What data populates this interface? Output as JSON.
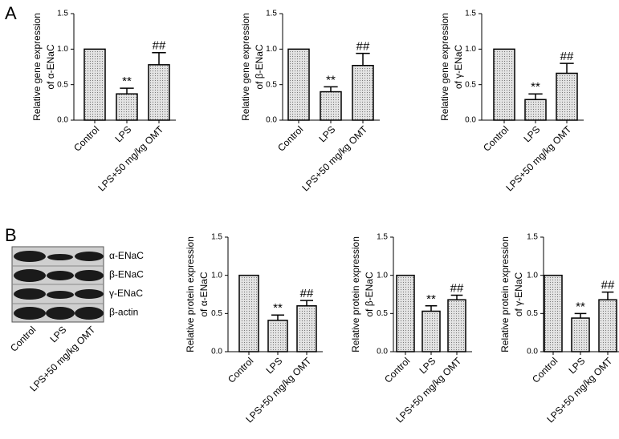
{
  "panels": [
    "A",
    "B"
  ],
  "blot": {
    "rows": [
      "α-ENaC",
      "β-ENaC",
      "γ-ENaC",
      "β-actin"
    ],
    "lanes": [
      "Control",
      "LPS",
      "LPS+50 mg/kg OMT"
    ]
  },
  "chart_data": [
    {
      "type": "bar",
      "ylabel": [
        "Relative gene expression",
        "of α-ENaC"
      ],
      "categories": [
        "Control",
        "LPS",
        "LPS+50 mg/kg OMT"
      ],
      "values": [
        1.0,
        0.37,
        0.78
      ],
      "errors": [
        null,
        0.08,
        0.17
      ],
      "annotations": [
        null,
        "**",
        "##"
      ],
      "color": "#e4e4e4",
      "ylim": [
        0,
        1.5
      ],
      "yticks": [
        {
          "value": 0,
          "label": "0.0"
        },
        0.5,
        {
          "value": 1,
          "label": "1.0"
        },
        1.5
      ]
    },
    {
      "type": "bar",
      "ylabel": [
        "Relative gene expression",
        "of β-ENaC"
      ],
      "categories": [
        "Control",
        "LPS",
        "LPS+50 mg/kg OMT"
      ],
      "values": [
        1.0,
        0.4,
        0.77
      ],
      "errors": [
        null,
        0.07,
        0.17
      ],
      "annotations": [
        null,
        "**",
        "##"
      ],
      "color": "#e4e4e4",
      "ylim": [
        0,
        1.5
      ],
      "yticks": [
        {
          "value": 0,
          "label": "0.0"
        },
        0.5,
        {
          "value": 1,
          "label": "1.0"
        },
        1.5
      ]
    },
    {
      "type": "bar",
      "ylabel": [
        "Relative gene expression",
        "of γ-ENaC"
      ],
      "categories": [
        "Control",
        "LPS",
        "LPS+50 mg/kg OMT"
      ],
      "values": [
        1.0,
        0.29,
        0.66
      ],
      "errors": [
        null,
        0.08,
        0.14
      ],
      "annotations": [
        null,
        "**",
        "##"
      ],
      "color": "#e4e4e4",
      "ylim": [
        0,
        1.5
      ],
      "yticks": [
        {
          "value": 0,
          "label": "0.0"
        },
        0.5,
        {
          "value": 1,
          "label": "1.0"
        },
        1.5
      ]
    },
    {
      "type": "bar",
      "ylabel": [
        "Relative protein expression",
        "of α-ENaC"
      ],
      "categories": [
        "Control",
        "LPS",
        "LPS+50 mg/kg OMT"
      ],
      "values": [
        1.0,
        0.41,
        0.6
      ],
      "errors": [
        null,
        0.07,
        0.07
      ],
      "annotations": [
        null,
        "**",
        "##"
      ],
      "color": "#e4e4e4",
      "ylim": [
        0,
        1.5
      ],
      "yticks": [
        {
          "value": 0,
          "label": "0.0"
        },
        0.5,
        {
          "value": 1,
          "label": "1.0"
        },
        1.5
      ]
    },
    {
      "type": "bar",
      "ylabel": [
        "Relative protein expression",
        "of β-ENaC"
      ],
      "categories": [
        "Control",
        "LPS",
        "LPS+50 mg/kg OMT"
      ],
      "values": [
        1.0,
        0.53,
        0.68
      ],
      "errors": [
        null,
        0.07,
        0.06
      ],
      "annotations": [
        null,
        "**",
        "##"
      ],
      "color": "#e4e4e4",
      "ylim": [
        0,
        1.5
      ],
      "yticks": [
        {
          "value": 0,
          "label": "0.0"
        },
        0.5,
        {
          "value": 1,
          "label": "1.0"
        },
        1.5
      ]
    },
    {
      "type": "bar",
      "ylabel": [
        "Relative protein expression",
        "of γ-ENaC"
      ],
      "categories": [
        "Control",
        "LPS",
        "LPS+50 mg/kg OMT"
      ],
      "values": [
        1.0,
        0.44,
        0.68
      ],
      "errors": [
        null,
        0.06,
        0.1
      ],
      "annotations": [
        null,
        "**",
        "##"
      ],
      "color": "#e4e4e4",
      "ylim": [
        0,
        1.5
      ],
      "yticks": [
        {
          "value": 0,
          "label": "0.0"
        },
        0.5,
        {
          "value": 1,
          "label": "1.0"
        },
        1.5
      ]
    }
  ]
}
